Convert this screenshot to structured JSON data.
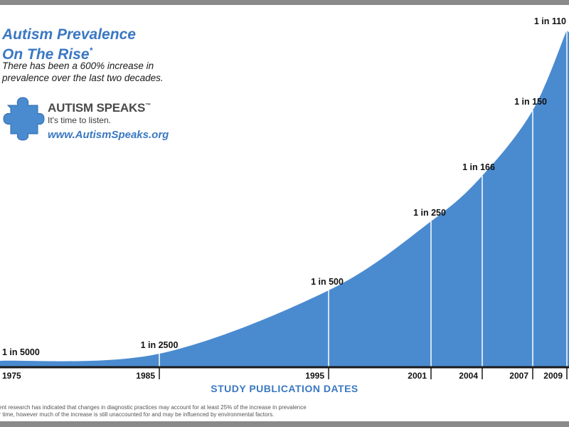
{
  "title": {
    "line1": "Autism Prevalence",
    "line2": "On The Rise",
    "asterisk": "*"
  },
  "subtitle": "There has been a 600% increase in prevalence over the last two decades.",
  "logo": {
    "name": "AUTISM SPEAKS",
    "trademark": "™",
    "tagline": "It's time to listen.",
    "url": "www.AutismSpeaks.org"
  },
  "footnote": {
    "line1": "cent research has indicated that changes in diagnostic practices may account for at least 25% of the increase in prevalence",
    "line2": "er time, however much of the increase is still unaccounted for and may be influenced by environmental factors."
  },
  "colors": {
    "area": "#4a8bd0",
    "accent": "#3a78c2",
    "axis": "#1a1a1a",
    "frame": "#8a8a8a"
  },
  "chart_data": {
    "type": "area",
    "xlabel": "STUDY PUBLICATION DATES",
    "ylabel": "",
    "x": [
      1975,
      1985,
      1995,
      2001,
      2004,
      2007,
      2009
    ],
    "x_tick_labels": [
      "1975",
      "1985",
      "1995",
      "2001",
      "2004",
      "2007",
      "2009"
    ],
    "y": [
      0.0002,
      0.0004,
      0.002,
      0.004,
      0.006024,
      0.006667,
      0.009091
    ],
    "data_labels": [
      "1 in 5000",
      "1 in 2500",
      "1 in 500",
      "1 in 250",
      "1 in 166",
      "1 in 150",
      "1 in 110"
    ],
    "grid": false,
    "legend": "none"
  }
}
